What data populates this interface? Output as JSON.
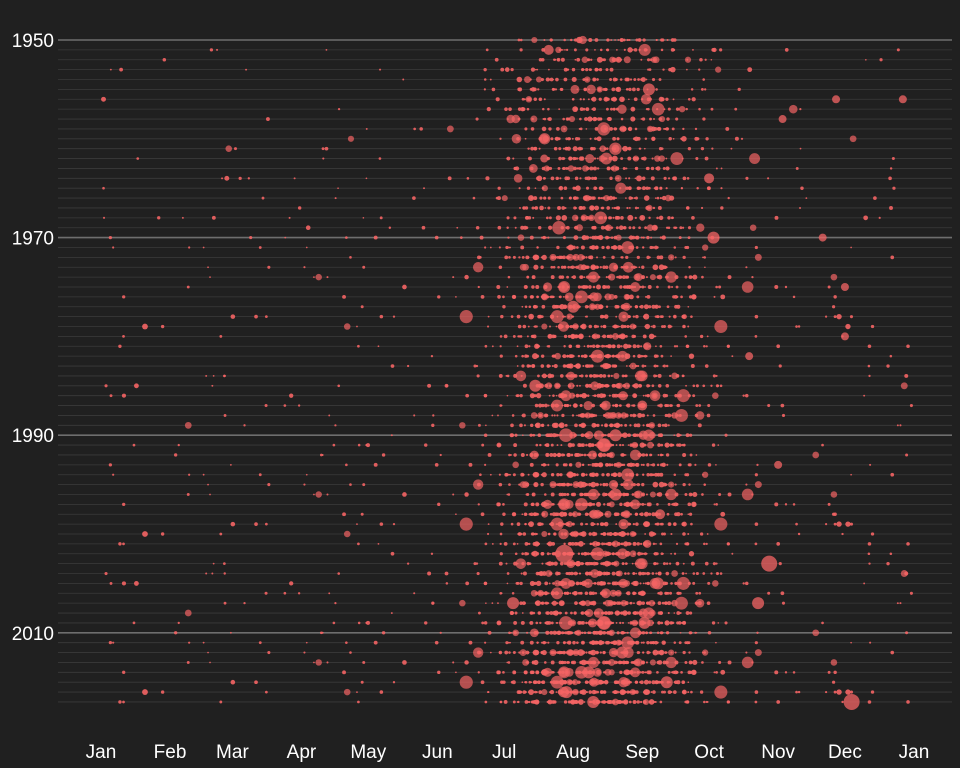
{
  "chart_data": {
    "type": "scatter",
    "title": "",
    "xlabel": "",
    "ylabel": "",
    "x_ticks": [
      "Jan",
      "Feb",
      "Mar",
      "Apr",
      "May",
      "Jun",
      "Jul",
      "Aug",
      "Sep",
      "Oct",
      "Nov",
      "Dec",
      "Jan"
    ],
    "y_ticks": [
      1950,
      1970,
      1990,
      2010
    ],
    "xlim": [
      "Jan 1",
      "Jan 1 (next year)"
    ],
    "ylim": [
      1950,
      2017
    ],
    "y_reversed": true,
    "grid": "horizontal line for every year, brighter at labeled years",
    "legend": "none",
    "colors": {
      "background": "#202020",
      "point": "#f46464",
      "grid_minor": "#3a3a3a",
      "grid_major": "#6e6e6e",
      "text": "#ffffff"
    },
    "series": [
      {
        "name": "",
        "points": [
          {
            "year": 1951,
            "date": "Jul 21",
            "size": 5
          },
          {
            "year": 1955,
            "date": "Sep 4",
            "size": 6
          },
          {
            "year": 1956,
            "date": "Nov 27",
            "size": 4
          },
          {
            "year": 1956,
            "date": "Dec 27",
            "size": 4
          },
          {
            "year": 1958,
            "date": "Nov 3",
            "size": 4
          },
          {
            "year": 1959,
            "date": "Aug 15",
            "size": 4
          },
          {
            "year": 1961,
            "date": "Aug 20",
            "size": 4
          },
          {
            "year": 1962,
            "date": "Jul 19",
            "size": 4
          },
          {
            "year": 1964,
            "date": "Oct 1",
            "size": 5
          },
          {
            "year": 1970,
            "date": "Oct 3",
            "size": 6
          },
          {
            "year": 1970,
            "date": "Nov 21",
            "size": 4
          },
          {
            "year": 1975,
            "date": "Dec 1",
            "size": 4
          },
          {
            "year": 1977,
            "date": "Aug 1",
            "size": 6
          },
          {
            "year": 1980,
            "date": "Dec 1",
            "size": 4
          },
          {
            "year": 1982,
            "date": "Oct 19",
            "size": 4
          },
          {
            "year": 1985,
            "date": "Jul 15",
            "size": 6
          },
          {
            "year": 1987,
            "date": "Sep 1",
            "size": 5
          },
          {
            "year": 1990,
            "date": "Aug 20",
            "size": 6
          },
          {
            "year": 1993,
            "date": "Nov 1",
            "size": 4
          },
          {
            "year": 1996,
            "date": "Aug 20",
            "size": 6
          },
          {
            "year": 1998,
            "date": "Sep 9",
            "size": 5
          },
          {
            "year": 2002,
            "date": "Jul 28",
            "size": 9
          },
          {
            "year": 2003,
            "date": "Oct 28",
            "size": 8
          },
          {
            "year": 2005,
            "date": "Sep 8",
            "size": 6
          },
          {
            "year": 2007,
            "date": "Jul 5",
            "size": 6
          },
          {
            "year": 2007,
            "date": "Oct 23",
            "size": 6
          },
          {
            "year": 2009,
            "date": "Sep 2",
            "size": 6
          },
          {
            "year": 2012,
            "date": "Aug 23",
            "size": 6
          },
          {
            "year": 2014,
            "date": "Aug 8",
            "size": 6
          },
          {
            "year": 2015,
            "date": "Sep 12",
            "size": 6
          },
          {
            "year": 2016,
            "date": "Jul 29",
            "size": 6
          },
          {
            "year": 2017,
            "date": "Aug 10",
            "size": 6
          },
          {
            "year": 2017,
            "date": "Dec 4",
            "size": 8
          }
        ]
      }
    ]
  }
}
